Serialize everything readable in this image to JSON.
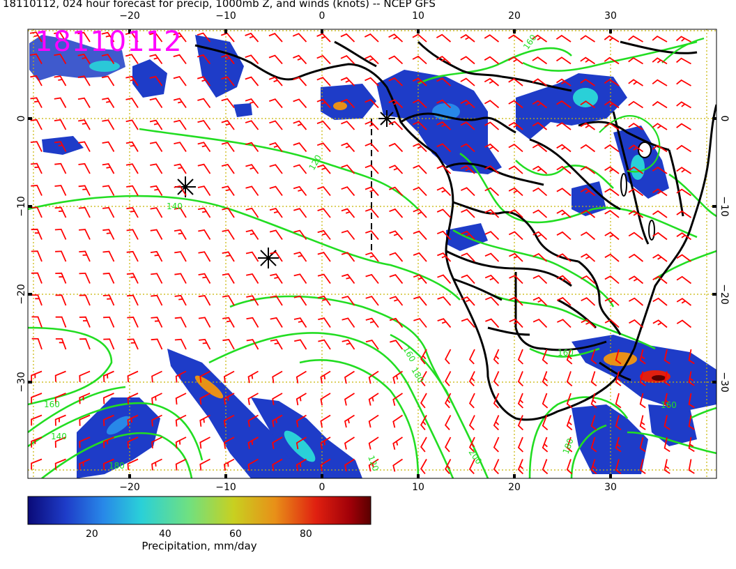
{
  "title": "18110112, 024 hour forecast for precip, 1000mb Z, and winds (knots) -- NCEP GFS",
  "stamp": "18110112",
  "axes": {
    "lon_ticks": [
      "−20",
      "−10",
      "0",
      "10",
      "20",
      "30"
    ],
    "lon_values": [
      -20,
      -10,
      0,
      10,
      20,
      30
    ],
    "lat_ticks": [
      "0",
      "−10",
      "−20",
      "−30"
    ],
    "lat_values": [
      0,
      -10,
      -20,
      -30
    ]
  },
  "contour_labels": [
    "160",
    "120",
    "140",
    "160",
    "180",
    "160",
    "140",
    "120",
    "180",
    "200",
    "160",
    "160",
    "180"
  ],
  "colorbar": {
    "ticks": [
      "20",
      "40",
      "60",
      "80"
    ],
    "tick_values": [
      20,
      40,
      60,
      80
    ],
    "range": [
      0,
      98
    ],
    "label": "Precipitation, mm/day",
    "colors": [
      "#0a0a78",
      "#1e3cc8",
      "#2888e8",
      "#2ad0d8",
      "#70e080",
      "#c8d020",
      "#e89018",
      "#e02010",
      "#a00008",
      "#5a0000"
    ]
  },
  "colors": {
    "winds": "#ff0000",
    "contours": "#22dd22",
    "grid": "#c8b400",
    "coast": "#000000",
    "stamp": "#ff00ff"
  }
}
